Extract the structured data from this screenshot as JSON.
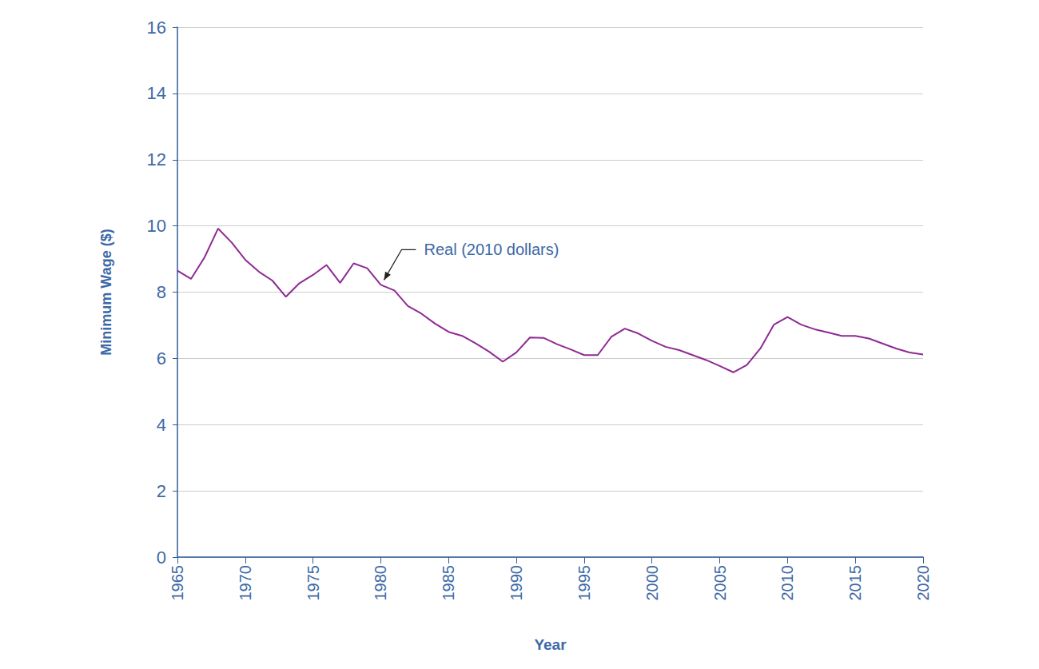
{
  "chart_data": {
    "type": "line",
    "x_label": "Year",
    "y_label": "Minimum Wage ($)",
    "x": [
      1965,
      1966,
      1967,
      1968,
      1969,
      1970,
      1971,
      1972,
      1973,
      1974,
      1975,
      1976,
      1977,
      1978,
      1979,
      1980,
      1981,
      1982,
      1983,
      1984,
      1985,
      1986,
      1987,
      1988,
      1989,
      1990,
      1991,
      1992,
      1993,
      1994,
      1995,
      1996,
      1997,
      1998,
      1999,
      2000,
      2001,
      2002,
      2003,
      2004,
      2005,
      2006,
      2007,
      2008,
      2009,
      2010,
      2011,
      2012,
      2013,
      2014,
      2015,
      2016,
      2017,
      2018,
      2019,
      2020
    ],
    "series": [
      {
        "name": "Real (2010 dollars)",
        "color": "#8f2a94",
        "values": [
          8.65,
          8.4,
          9.05,
          9.92,
          9.5,
          8.98,
          8.62,
          8.35,
          7.86,
          8.27,
          8.52,
          8.82,
          8.28,
          8.87,
          8.72,
          8.22,
          8.05,
          7.58,
          7.35,
          7.05,
          6.8,
          6.68,
          6.45,
          6.2,
          5.9,
          6.18,
          6.63,
          6.62,
          6.43,
          6.27,
          6.1,
          6.1,
          6.65,
          6.9,
          6.75,
          6.53,
          6.35,
          6.25,
          6.1,
          5.95,
          5.77,
          5.58,
          5.8,
          6.3,
          7.02,
          7.25,
          7.02,
          6.88,
          6.78,
          6.68,
          6.68,
          6.6,
          6.45,
          6.3,
          6.18,
          6.12
        ]
      }
    ],
    "annotations": [
      {
        "text": "Real (2010 dollars)",
        "x": 1980,
        "y": 8.22
      }
    ],
    "xlim": [
      1965,
      2020
    ],
    "xticks": [
      1965,
      1970,
      1975,
      1980,
      1985,
      1990,
      1995,
      2000,
      2005,
      2010,
      2015,
      2020
    ],
    "ylim": [
      0,
      16
    ],
    "yticks": [
      0,
      2,
      4,
      6,
      8,
      10,
      12,
      14,
      16
    ],
    "grid": true
  }
}
